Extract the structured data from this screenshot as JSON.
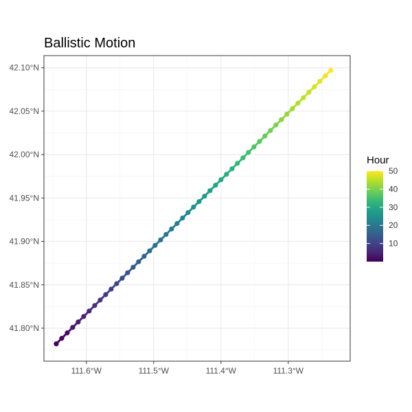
{
  "chart_data": {
    "type": "scatter",
    "title": "Ballistic Motion",
    "xlabel": "",
    "ylabel": "",
    "x_ticks": [
      {
        "value": -111.6,
        "label": "111.6°W"
      },
      {
        "value": -111.5,
        "label": "111.5°W"
      },
      {
        "value": -111.4,
        "label": "111.4°W"
      },
      {
        "value": -111.3,
        "label": "111.3°W"
      }
    ],
    "y_ticks": [
      {
        "value": 41.8,
        "label": "41.80°N"
      },
      {
        "value": 41.85,
        "label": "41.85°N"
      },
      {
        "value": 41.9,
        "label": "41.90°N"
      },
      {
        "value": 41.95,
        "label": "41.95°N"
      },
      {
        "value": 42.0,
        "label": "42.00°N"
      },
      {
        "value": 42.05,
        "label": "42.05°N"
      },
      {
        "value": 42.1,
        "label": "42.10°N"
      }
    ],
    "xlim": [
      -111.663,
      -111.208
    ],
    "ylim": [
      41.762,
      42.114
    ],
    "grid": true,
    "legend": {
      "title": "Hour",
      "placement": "right",
      "min": 0,
      "max": 50,
      "ticks": [
        10,
        20,
        30,
        40,
        50
      ],
      "colorscale": [
        "#440154",
        "#482878",
        "#3e4989",
        "#31688e",
        "#26828e",
        "#1f9e89",
        "#35b779",
        "#6ece58",
        "#b5de2b",
        "#fde725"
      ]
    },
    "series": [
      {
        "x": [
          -111.6447,
          -111.6366,
          -111.6284,
          -111.6203,
          -111.6121,
          -111.604,
          -111.5958,
          -111.5876,
          -111.5795,
          -111.5713,
          -111.5632,
          -111.555,
          -111.5468,
          -111.5387,
          -111.5305,
          -111.5224,
          -111.5142,
          -111.506,
          -111.4979,
          -111.4897,
          -111.4816,
          -111.4734,
          -111.4652,
          -111.4571,
          -111.4489,
          -111.4408,
          -111.4326,
          -111.4244,
          -111.4163,
          -111.4081,
          -111.4,
          -111.3918,
          -111.3836,
          -111.3755,
          -111.3673,
          -111.3592,
          -111.351,
          -111.3428,
          -111.3347,
          -111.3265,
          -111.3184,
          -111.3102,
          -111.302,
          -111.2939,
          -111.2857,
          -111.2776,
          -111.2694,
          -111.2612,
          -111.2531,
          -111.2449,
          -111.2368
        ],
        "y": [
          41.782,
          41.7883,
          41.7946,
          41.8009,
          41.8072,
          41.8135,
          41.8198,
          41.8261,
          41.8324,
          41.8387,
          41.845,
          41.8513,
          41.8576,
          41.8639,
          41.8702,
          41.8765,
          41.8828,
          41.8891,
          41.8954,
          41.9017,
          41.908,
          41.9143,
          41.9206,
          41.9269,
          41.9332,
          41.9395,
          41.9458,
          41.9521,
          41.9584,
          41.9647,
          41.971,
          41.9773,
          41.9836,
          41.9899,
          41.9962,
          42.0025,
          42.0088,
          42.0151,
          42.0214,
          42.0277,
          42.034,
          42.0403,
          42.0466,
          42.0529,
          42.0592,
          42.0655,
          42.0718,
          42.0781,
          42.0844,
          42.0907,
          42.097
        ],
        "hour": [
          0,
          1,
          2,
          3,
          4,
          5,
          6,
          7,
          8,
          9,
          10,
          11,
          12,
          13,
          14,
          15,
          16,
          17,
          18,
          19,
          20,
          21,
          22,
          23,
          24,
          25,
          26,
          27,
          28,
          29,
          30,
          31,
          32,
          33,
          34,
          35,
          36,
          37,
          38,
          39,
          40,
          41,
          42,
          43,
          44,
          45,
          46,
          47,
          48,
          49,
          50
        ]
      }
    ]
  }
}
